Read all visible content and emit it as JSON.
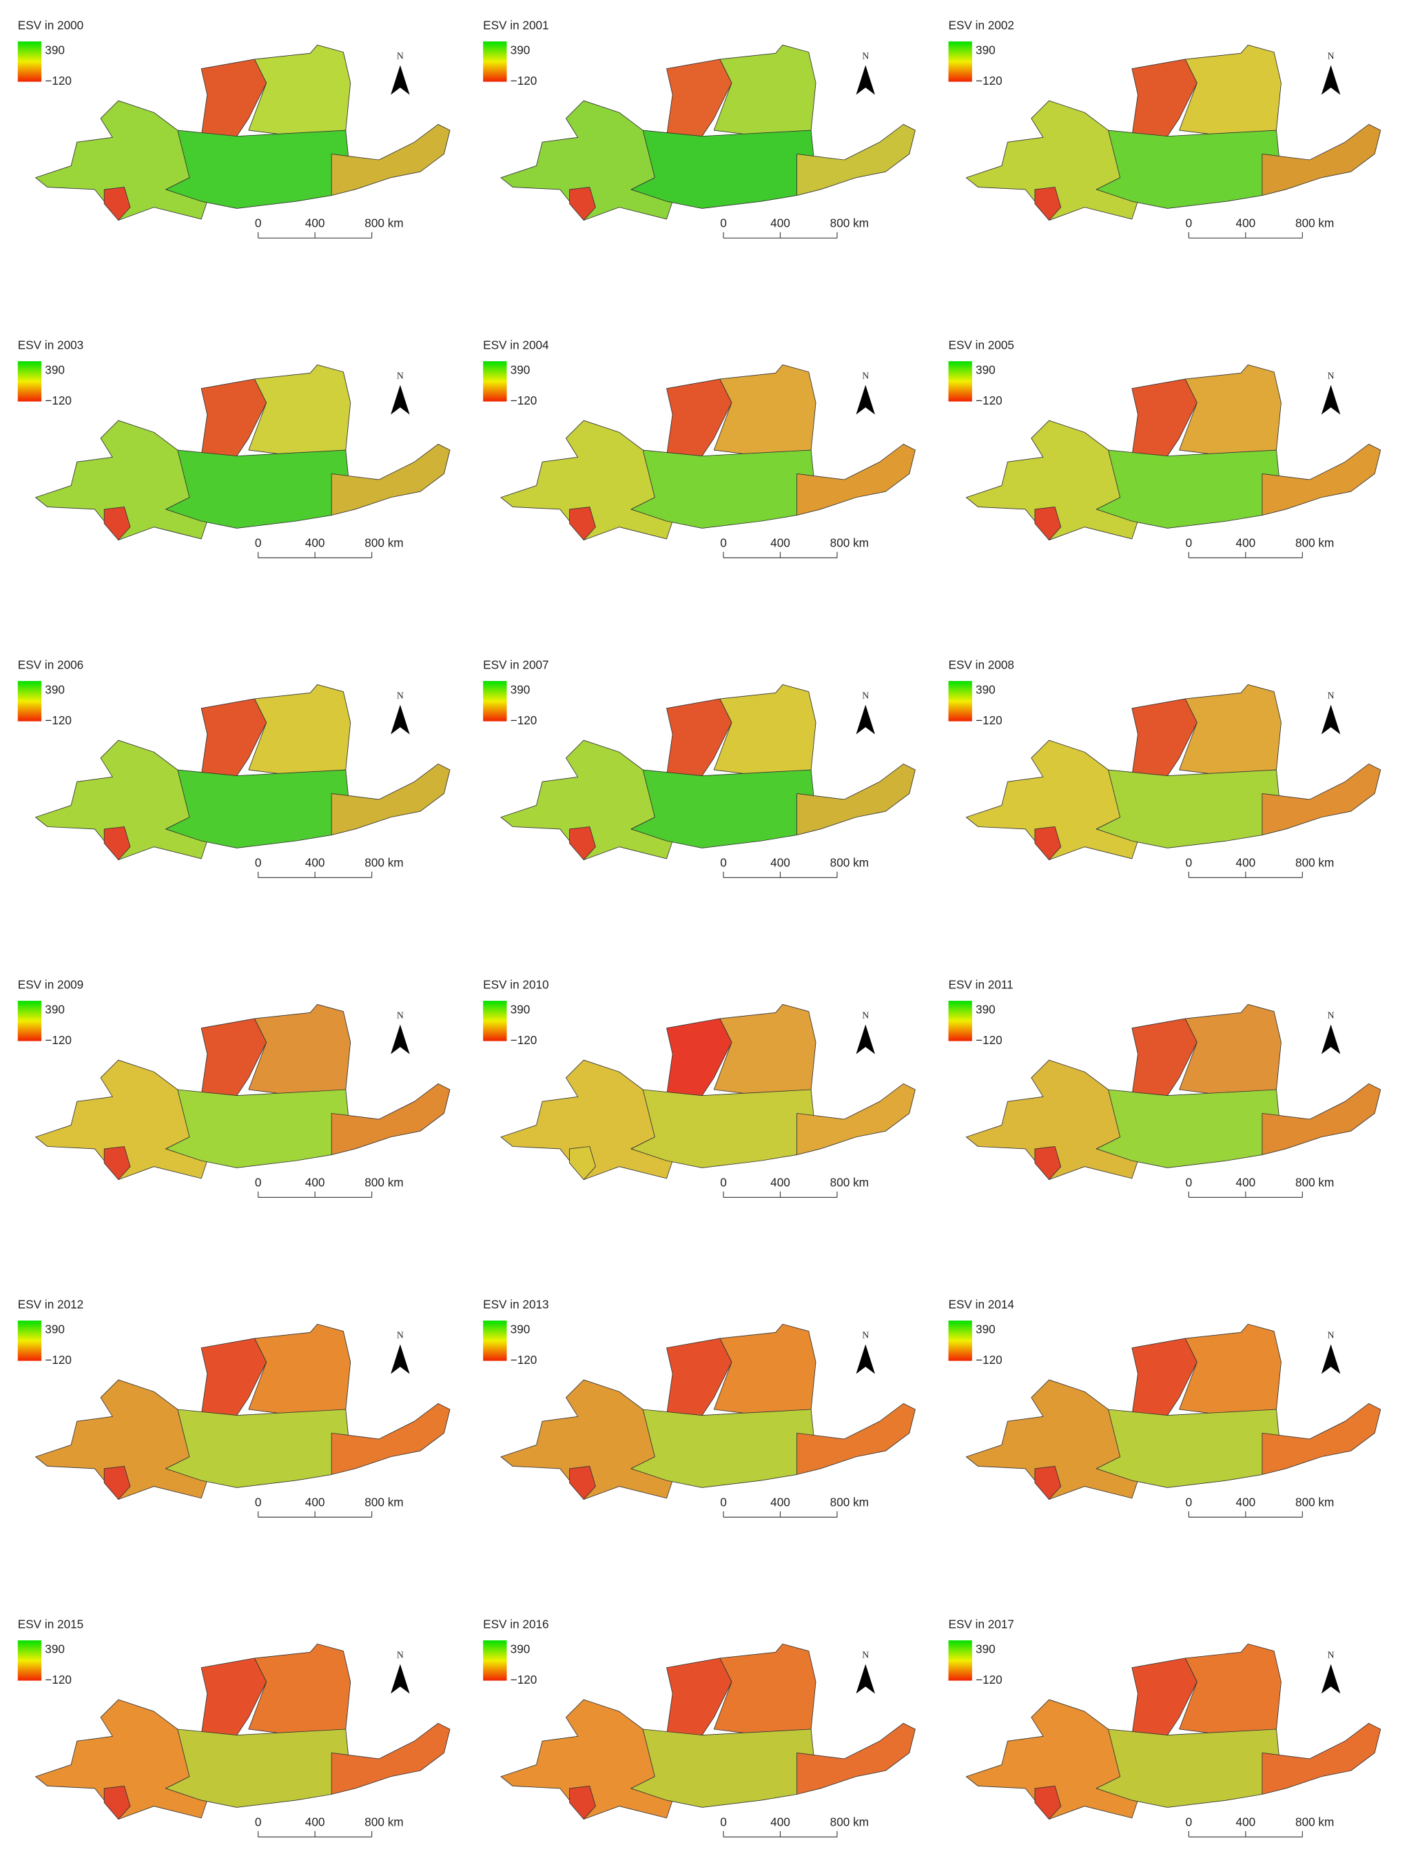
{
  "legend_colors": [
    "#00e000",
    "#f0f000",
    "#f02000"
  ],
  "panels": [
    {
      "title": "ESV in 2000",
      "legend_max": "390",
      "legend_min": "−120",
      "north": "N",
      "scale_labels": [
        "0",
        "400",
        "800 km"
      ],
      "colors": [
        "#e35a2a",
        "#b9d83c",
        "#9ad63a",
        "#45cc2e",
        "#cfb236",
        "#e2452a"
      ]
    },
    {
      "title": "ESV in 2001",
      "legend_max": "390",
      "legend_min": "−120",
      "north": "N",
      "scale_labels": [
        "0",
        "400",
        "800 km"
      ],
      "colors": [
        "#e4622c",
        "#a8d63a",
        "#8cd43a",
        "#3ec92c",
        "#c9c23a",
        "#e2452a"
      ]
    },
    {
      "title": "ESV in 2002",
      "legend_max": "390",
      "legend_min": "−120",
      "north": "N",
      "scale_labels": [
        "0",
        "400",
        "800 km"
      ],
      "colors": [
        "#e35a2a",
        "#d8c83a",
        "#c0d23a",
        "#6ad232",
        "#d89a30",
        "#e2452a"
      ]
    },
    {
      "title": "ESV in 2003",
      "legend_max": "390",
      "legend_min": "−120",
      "north": "N",
      "scale_labels": [
        "0",
        "400",
        "800 km"
      ],
      "colors": [
        "#e25a2a",
        "#cfd03c",
        "#a0d63a",
        "#4ccc2e",
        "#cfb236",
        "#e2452a"
      ]
    },
    {
      "title": "ESV in 2004",
      "legend_max": "390",
      "legend_min": "−120",
      "north": "N",
      "scale_labels": [
        "0",
        "400",
        "800 km"
      ],
      "colors": [
        "#e3552a",
        "#e0a838",
        "#c8d03a",
        "#7ad434",
        "#e09a32",
        "#e2452a"
      ]
    },
    {
      "title": "ESV in 2005",
      "legend_max": "390",
      "legend_min": "−120",
      "north": "N",
      "scale_labels": [
        "0",
        "400",
        "800 km"
      ],
      "colors": [
        "#e3552a",
        "#e0a838",
        "#c8d03a",
        "#7ad434",
        "#e09a32",
        "#e2452a"
      ]
    },
    {
      "title": "ESV in 2006",
      "legend_max": "390",
      "legend_min": "−120",
      "north": "N",
      "scale_labels": [
        "0",
        "400",
        "800 km"
      ],
      "colors": [
        "#e3552a",
        "#d8c83a",
        "#a8d63a",
        "#4ccc2e",
        "#cfb236",
        "#e2452a"
      ]
    },
    {
      "title": "ESV in 2007",
      "legend_max": "390",
      "legend_min": "−120",
      "north": "N",
      "scale_labels": [
        "0",
        "400",
        "800 km"
      ],
      "colors": [
        "#e3552a",
        "#d8c83a",
        "#a8d63a",
        "#4ccc2e",
        "#cfb236",
        "#e2452a"
      ]
    },
    {
      "title": "ESV in 2008",
      "legend_max": "390",
      "legend_min": "−120",
      "north": "N",
      "scale_labels": [
        "0",
        "400",
        "800 km"
      ],
      "colors": [
        "#e3552a",
        "#e0a838",
        "#d8c83a",
        "#a8d43a",
        "#e09032",
        "#e2452a"
      ]
    },
    {
      "title": "ESV in 2009",
      "legend_max": "390",
      "legend_min": "−120",
      "north": "N",
      "scale_labels": [
        "0",
        "400",
        "800 km"
      ],
      "colors": [
        "#e3552a",
        "#e09238",
        "#dcc23a",
        "#a0d63a",
        "#e08a32",
        "#e2452a"
      ]
    },
    {
      "title": "ESV in 2010",
      "legend_max": "390",
      "legend_min": "−120",
      "north": "N",
      "scale_labels": [
        "0",
        "400",
        "800 km"
      ],
      "colors": [
        "#e83a28",
        "#e0a03a",
        "#dcc03c",
        "#c8cc3a",
        "#e0a838",
        "#d8c83a"
      ]
    },
    {
      "title": "ESV in 2011",
      "legend_max": "390",
      "legend_min": "−120",
      "north": "N",
      "scale_labels": [
        "0",
        "400",
        "800 km"
      ],
      "colors": [
        "#e3552a",
        "#e09238",
        "#dcb83a",
        "#98d43a",
        "#e08a32",
        "#e2452a"
      ]
    },
    {
      "title": "ESV in 2012",
      "legend_max": "390",
      "legend_min": "−120",
      "north": "N",
      "scale_labels": [
        "0",
        "400",
        "800 km"
      ],
      "colors": [
        "#e5502a",
        "#e88a30",
        "#e09a34",
        "#b8ce3a",
        "#e87a2e",
        "#e2452a"
      ]
    },
    {
      "title": "ESV in 2013",
      "legend_max": "390",
      "legend_min": "−120",
      "north": "N",
      "scale_labels": [
        "0",
        "400",
        "800 km"
      ],
      "colors": [
        "#e5502a",
        "#e88a30",
        "#e09a34",
        "#b8ce3a",
        "#e87a2e",
        "#e2452a"
      ]
    },
    {
      "title": "ESV in 2014",
      "legend_max": "390",
      "legend_min": "−120",
      "north": "N",
      "scale_labels": [
        "0",
        "400",
        "800 km"
      ],
      "colors": [
        "#e5502a",
        "#e88a30",
        "#e09a34",
        "#b8ce3a",
        "#e87a2e",
        "#e2452a"
      ]
    },
    {
      "title": "ESV in 2015",
      "legend_max": "390",
      "legend_min": "−120",
      "north": "N",
      "scale_labels": [
        "0",
        "400",
        "800 km"
      ],
      "colors": [
        "#e5502a",
        "#e8782e",
        "#e89032",
        "#c0c83a",
        "#e8702e",
        "#e2452a"
      ]
    },
    {
      "title": "ESV in 2016",
      "legend_max": "390",
      "legend_min": "−120",
      "north": "N",
      "scale_labels": [
        "0",
        "400",
        "800 km"
      ],
      "colors": [
        "#e5502a",
        "#e8782e",
        "#e89032",
        "#c0c83a",
        "#e8702e",
        "#e2452a"
      ]
    },
    {
      "title": "ESV in 2017",
      "legend_max": "390",
      "legend_min": "−120",
      "north": "N",
      "scale_labels": [
        "0",
        "400",
        "800 km"
      ],
      "colors": [
        "#e5502a",
        "#e8782e",
        "#e89032",
        "#c0c83a",
        "#e8702e",
        "#e2452a"
      ]
    }
  ]
}
